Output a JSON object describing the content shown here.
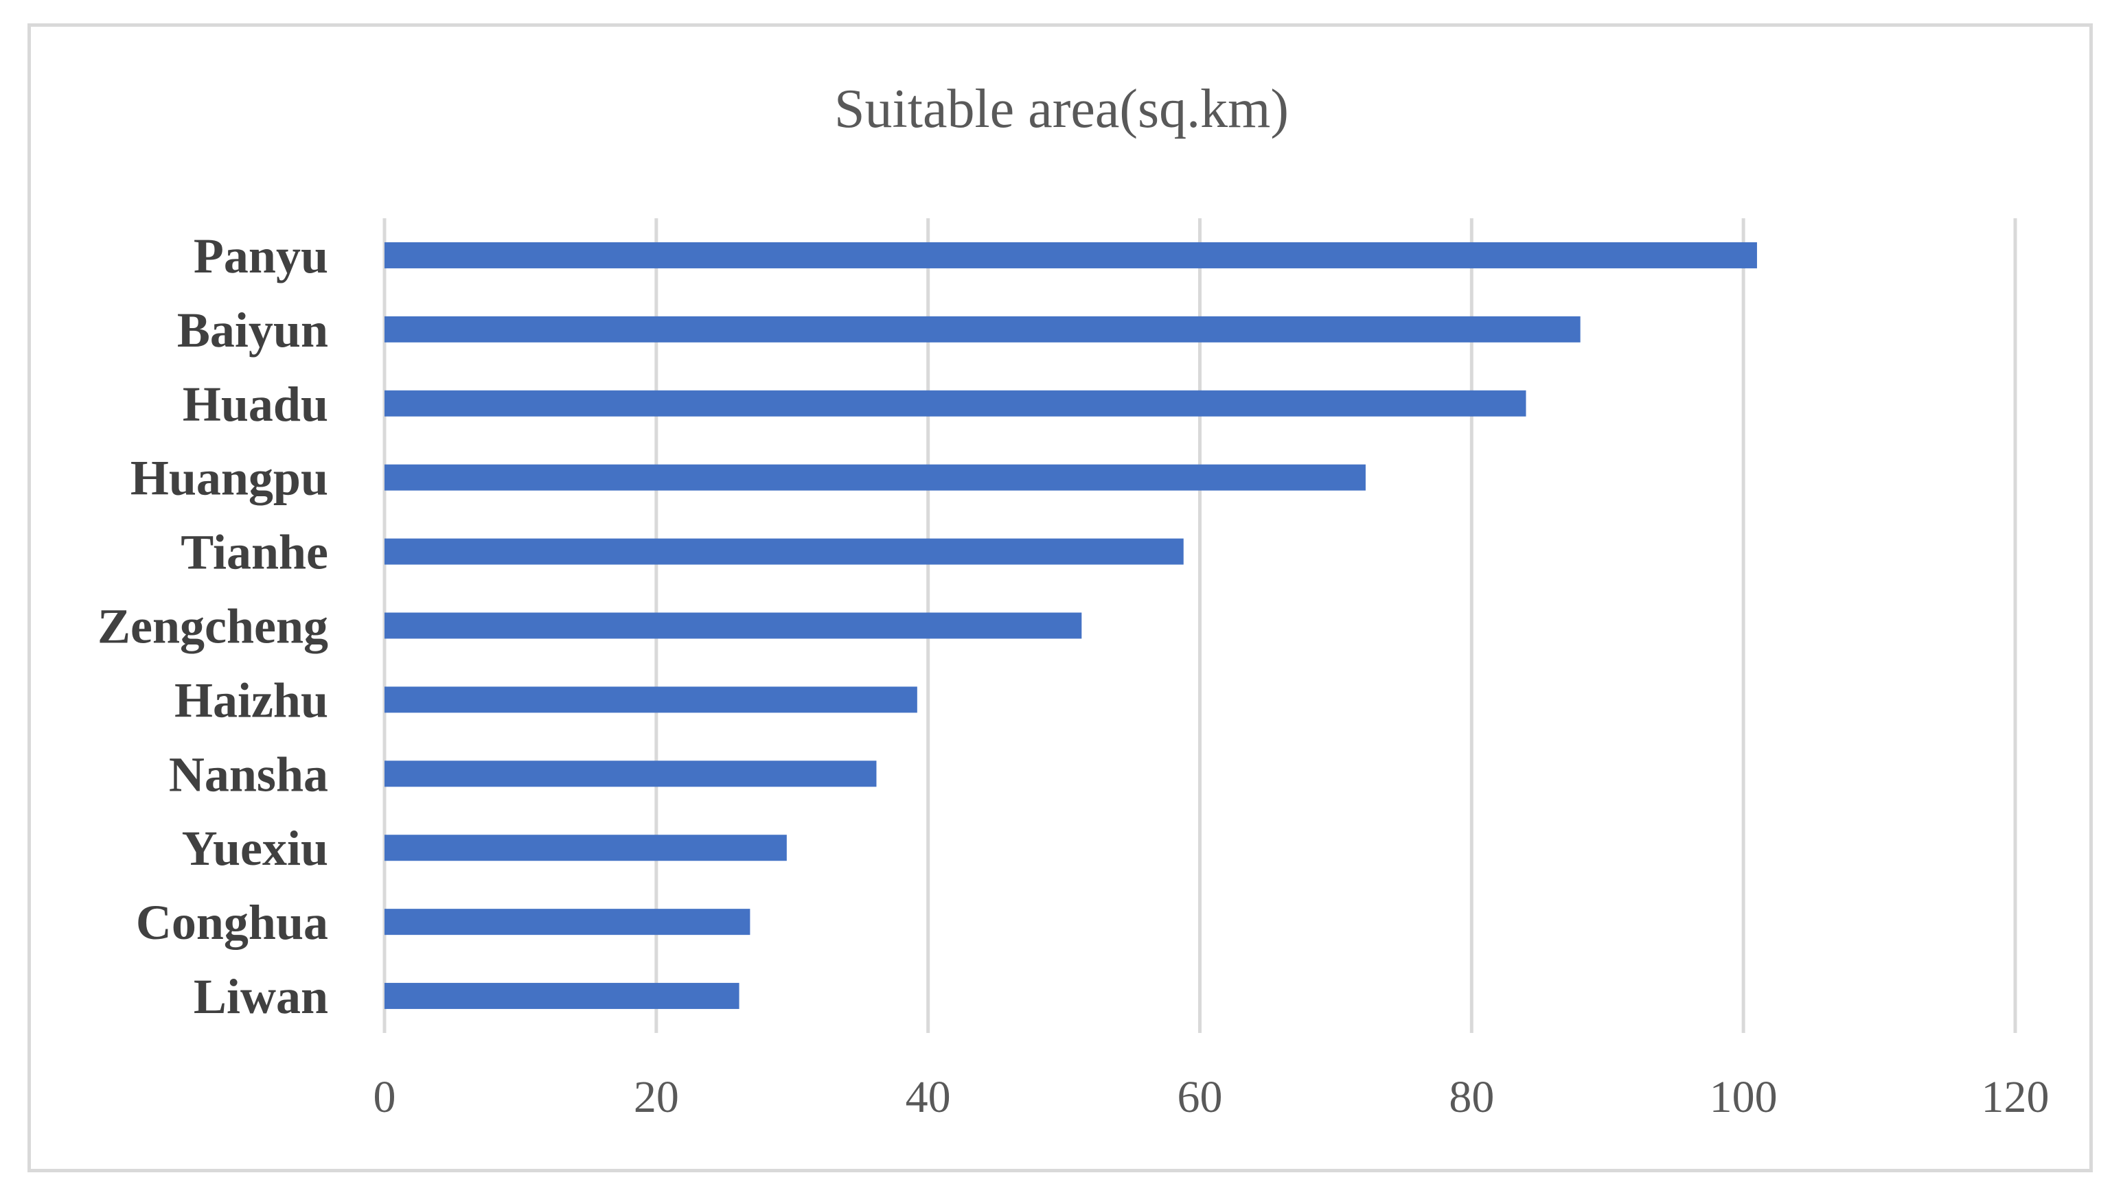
{
  "chart_data": {
    "type": "bar",
    "orientation": "horizontal",
    "title": "Suitable area(sq.km)",
    "xlabel": "",
    "ylabel": "",
    "categories": [
      "Panyu",
      "Baiyun",
      "Huadu",
      "Huangpu",
      "Tianhe",
      "Zengcheng",
      "Haizhu",
      "Nansha",
      "Yuexiu",
      "Conghua",
      "Liwan"
    ],
    "values": [
      101,
      88,
      84,
      72.2,
      58.8,
      51.3,
      39.2,
      36.2,
      29.6,
      26.9,
      26.1
    ],
    "xlim": [
      0,
      120
    ],
    "xticks": [
      "0",
      "20",
      "40",
      "60",
      "80",
      "100",
      "120"
    ],
    "grid": "vertical",
    "legend": "none",
    "bar_color": "#4472c4",
    "grid_color": "#d9d9d9",
    "text_color": "#595959"
  }
}
